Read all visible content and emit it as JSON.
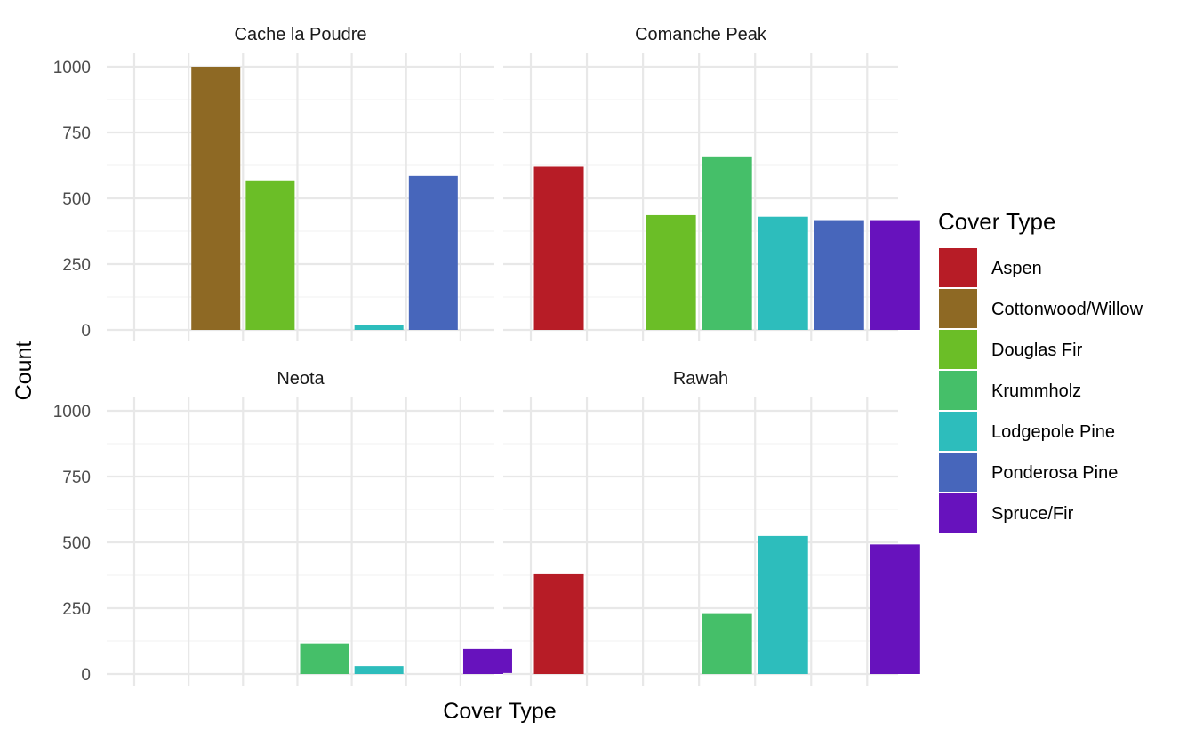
{
  "chart_data": {
    "type": "bar",
    "facets": [
      "Cache la Poudre",
      "Comanche Peak",
      "Neota",
      "Rawah"
    ],
    "categories": [
      "Aspen",
      "Cottonwood/Willow",
      "Douglas Fir",
      "Krummholz",
      "Lodgepole Pine",
      "Ponderosa Pine",
      "Spruce/Fir"
    ],
    "series": [
      {
        "facet": "Cache la Poudre",
        "values": [
          0,
          1000,
          565,
          0,
          20,
          585,
          0
        ]
      },
      {
        "facet": "Comanche Peak",
        "values": [
          620,
          0,
          436,
          656,
          430,
          417,
          417
        ]
      },
      {
        "facet": "Neota",
        "values": [
          0,
          0,
          0,
          116,
          30,
          0,
          95
        ]
      },
      {
        "facet": "Rawah",
        "values": [
          382,
          0,
          0,
          231,
          524,
          0,
          492
        ]
      }
    ],
    "colors": {
      "Aspen": "#B71C26",
      "Cottonwood/Willow": "#8E6924",
      "Douglas Fir": "#6BBE27",
      "Krummholz": "#45BF69",
      "Lodgepole Pine": "#2DBDBC",
      "Ponderosa Pine": "#4766BB",
      "Spruce/Fir": "#6712BD"
    },
    "xlabel": "Cover Type",
    "ylabel": "Count",
    "ylim": [
      0,
      1000
    ],
    "yticks": [
      "0",
      "250",
      "500",
      "750",
      "1000"
    ],
    "grid": true,
    "legend": {
      "title": "Cover Type",
      "position": "right",
      "entries": [
        "Aspen",
        "Cottonwood/Willow",
        "Douglas Fir",
        "Krummholz",
        "Lodgepole Pine",
        "Ponderosa Pine",
        "Spruce/Fir"
      ]
    }
  }
}
